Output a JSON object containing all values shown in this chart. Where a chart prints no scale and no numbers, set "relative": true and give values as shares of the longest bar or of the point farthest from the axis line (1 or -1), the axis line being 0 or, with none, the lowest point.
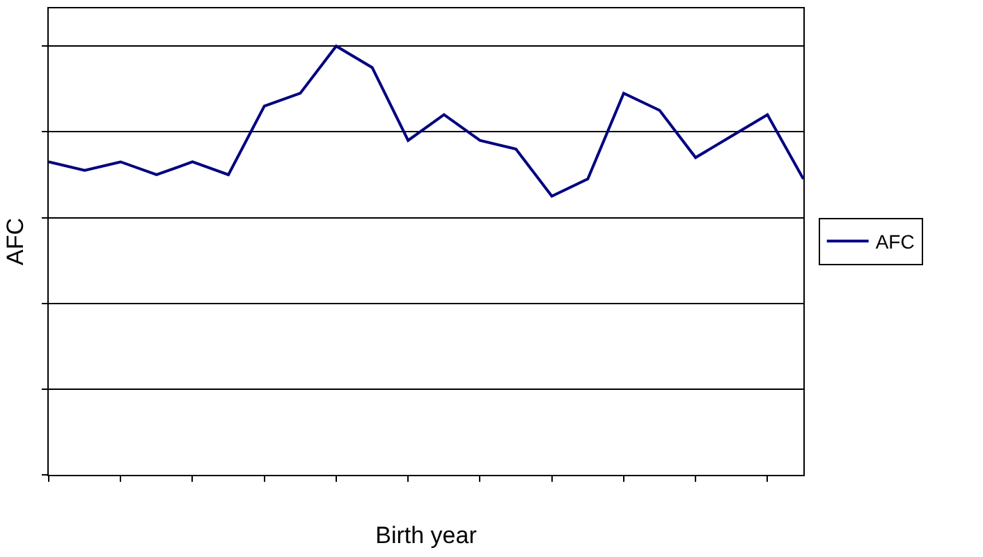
{
  "chart_data": {
    "type": "line",
    "xlabel": "Birth year",
    "ylabel": "AFC",
    "relative": true,
    "grid": "y",
    "legend": "right",
    "marker": "none",
    "line_style": "solid",
    "categories": [
      null,
      null,
      null,
      null,
      null,
      null,
      null,
      null,
      null,
      null,
      null,
      null,
      null,
      null,
      null,
      null,
      null,
      null,
      null,
      null,
      null,
      null
    ],
    "series": [
      {
        "name": "AFC",
        "color": "#000080",
        "values": [
          0.73,
          0.71,
          0.73,
          0.7,
          0.73,
          0.7,
          0.86,
          0.89,
          1,
          0.95,
          0.78,
          0.84,
          0.78,
          0.76,
          0.65,
          0.69,
          0.89,
          0.85,
          0.74,
          0.79,
          0.84,
          0.69
        ]
      }
    ]
  }
}
